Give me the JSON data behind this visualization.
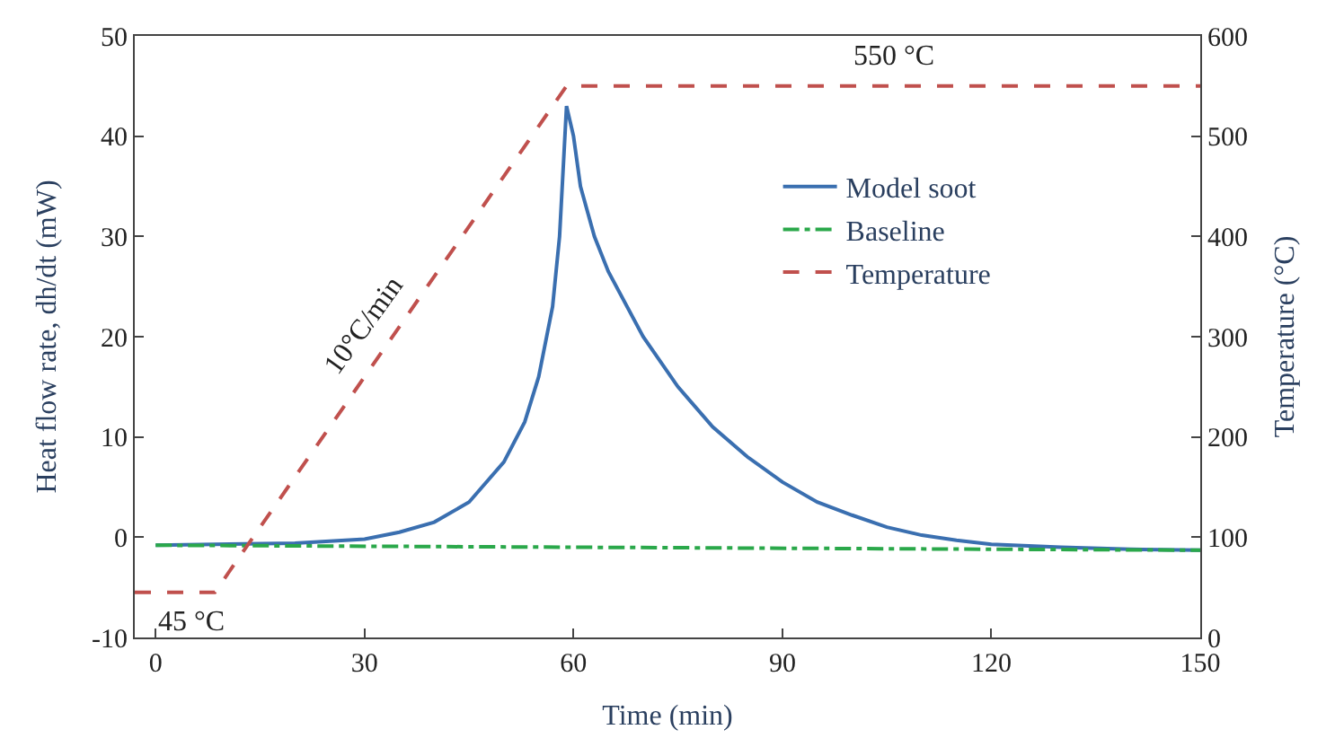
{
  "chart_data": {
    "type": "line",
    "xlabel": "Time (min)",
    "ylabel": "Heat flow rate, dh/dt (mW)",
    "y2label": "Temperature (°C)",
    "xlim": [
      -3,
      150
    ],
    "xticks": [
      0,
      30,
      60,
      90,
      120,
      150
    ],
    "ylim": [
      -10,
      50
    ],
    "yticks": [
      -10,
      0,
      10,
      20,
      30,
      40,
      50
    ],
    "y2lim": [
      0,
      600
    ],
    "y2ticks": [
      0,
      100,
      200,
      300,
      400,
      500,
      600
    ],
    "legend": "right",
    "marker": "none",
    "series": [
      {
        "name": "Model soot",
        "color": "#3a6fb0",
        "line_style": "solid",
        "x": [
          0,
          20,
          30,
          35,
          40,
          45,
          50,
          53,
          55,
          57,
          58,
          59,
          60,
          61,
          63,
          65,
          70,
          75,
          80,
          85,
          90,
          95,
          100,
          105,
          110,
          115,
          120,
          130,
          140,
          150
        ],
        "values": [
          -0.8,
          -0.6,
          -0.2,
          0.5,
          1.5,
          3.5,
          7.5,
          11.5,
          16,
          23,
          30,
          43,
          40,
          35,
          30,
          26.5,
          20,
          15,
          11,
          8,
          5.5,
          3.5,
          2.2,
          1,
          0.2,
          -0.3,
          -0.7,
          -1.0,
          -1.2,
          -1.3
        ]
      },
      {
        "name": "Baseline",
        "color": "#2aa84a",
        "line_style": "dashdot",
        "x": [
          0,
          60,
          150
        ],
        "values": [
          -0.8,
          -1.0,
          -1.3
        ]
      },
      {
        "name": "Temperature",
        "color": "#c0504d",
        "line_style": "dashed",
        "axis": "y2",
        "x": [
          -3,
          8.5,
          59,
          150
        ],
        "values": [
          45,
          45,
          550,
          550
        ]
      }
    ],
    "annotations": [
      "550 °C",
      "45 °C",
      "10°C/min"
    ]
  }
}
